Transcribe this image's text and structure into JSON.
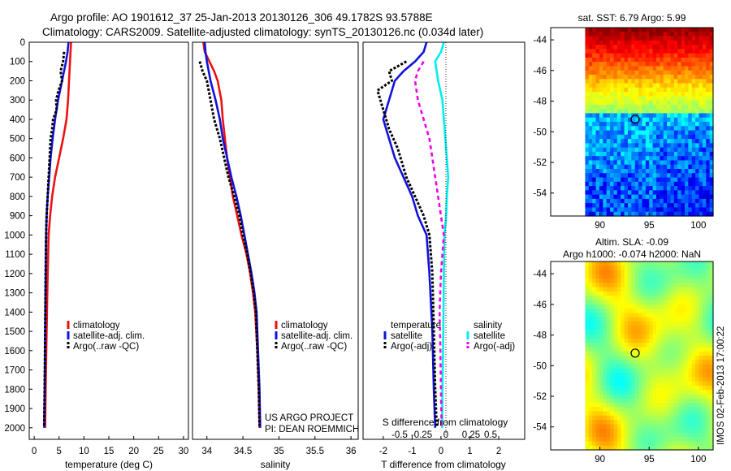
{
  "header": {
    "line1": "Argo profile: AO 1901612_37 25-Jan-2013 20130126_306 49.1782S 93.5788E",
    "line2": "Climatology: CARS2009. Satellite-adjusted climatology: synTS_20130126.nc (0.034d later)"
  },
  "colors": {
    "climatology": "#ee1111",
    "satellite": "#1111dd",
    "argo": "#000000",
    "satellite_diff": "#00eeee",
    "argo_diff": "#ee00ee"
  },
  "depth_axis": {
    "ticks": [
      0,
      100,
      200,
      300,
      400,
      500,
      600,
      700,
      800,
      900,
      1000,
      1100,
      1200,
      1300,
      1400,
      1500,
      1600,
      1700,
      1800,
      1900,
      2000
    ],
    "range": [
      0,
      2060
    ]
  },
  "chart_data": [
    {
      "type": "line",
      "id": "temperature",
      "xlabel": "temperature (deg C)",
      "xlim": [
        -1,
        31
      ],
      "xticks": [
        0,
        5,
        10,
        15,
        20,
        25,
        30
      ],
      "legend": [
        "climatology",
        "satellite-adj. clim.",
        "Argo(..raw -QC)"
      ],
      "series": [
        {
          "name": "climatology",
          "color": "#ee1111",
          "points": [
            [
              7.4,
              0
            ],
            [
              7.3,
              50
            ],
            [
              7.2,
              100
            ],
            [
              7.0,
              200
            ],
            [
              6.8,
              300
            ],
            [
              6.5,
              400
            ],
            [
              5.8,
              500
            ],
            [
              5.0,
              600
            ],
            [
              4.2,
              700
            ],
            [
              3.6,
              800
            ],
            [
              3.2,
              900
            ],
            [
              2.9,
              1000
            ],
            [
              2.7,
              1200
            ],
            [
              2.5,
              1500
            ],
            [
              2.3,
              1800
            ],
            [
              2.2,
              2000
            ]
          ]
        },
        {
          "name": "satellite-adj. clim.",
          "color": "#1111dd",
          "points": [
            [
              6.9,
              0
            ],
            [
              6.7,
              50
            ],
            [
              6.4,
              100
            ],
            [
              5.6,
              200
            ],
            [
              4.8,
              300
            ],
            [
              4.2,
              400
            ],
            [
              3.7,
              500
            ],
            [
              3.3,
              600
            ],
            [
              3.0,
              700
            ],
            [
              2.7,
              800
            ],
            [
              2.5,
              900
            ],
            [
              2.4,
              1000
            ],
            [
              2.3,
              1200
            ],
            [
              2.2,
              1500
            ],
            [
              2.1,
              1800
            ],
            [
              2.0,
              2000
            ]
          ]
        },
        {
          "name": "Argo(..raw -QC)",
          "color": "#000000",
          "points": [
            [
              6.0,
              50
            ],
            [
              5.8,
              100
            ],
            [
              5.3,
              150
            ],
            [
              5.6,
              200
            ],
            [
              4.9,
              250
            ],
            [
              4.4,
              300
            ],
            [
              4.5,
              350
            ],
            [
              3.8,
              400
            ],
            [
              3.6,
              450
            ],
            [
              3.3,
              500
            ],
            [
              3.1,
              600
            ],
            [
              2.9,
              700
            ],
            [
              2.7,
              800
            ],
            [
              2.5,
              900
            ],
            [
              2.4,
              1000
            ],
            [
              2.3,
              1200
            ],
            [
              2.2,
              1500
            ],
            [
              2.1,
              1800
            ],
            [
              2.0,
              1990
            ]
          ]
        }
      ]
    },
    {
      "type": "line",
      "id": "salinity",
      "xlabel": "salinity",
      "xlim": [
        33.8,
        36.1
      ],
      "xticks": [
        34,
        34.5,
        35,
        35.5,
        36
      ],
      "legend": [
        "climatology",
        "satellite-adj. clim.",
        "Argo(..raw -QC)"
      ],
      "series": [
        {
          "name": "climatology",
          "color": "#ee1111",
          "points": [
            [
              33.95,
              0
            ],
            [
              33.97,
              50
            ],
            [
              34.1,
              150
            ],
            [
              34.15,
              200
            ],
            [
              34.2,
              300
            ],
            [
              34.22,
              400
            ],
            [
              34.25,
              500
            ],
            [
              34.28,
              600
            ],
            [
              34.32,
              700
            ],
            [
              34.36,
              800
            ],
            [
              34.42,
              900
            ],
            [
              34.48,
              1000
            ],
            [
              34.55,
              1100
            ],
            [
              34.6,
              1200
            ],
            [
              34.64,
              1300
            ],
            [
              34.67,
              1400
            ],
            [
              34.7,
              1600
            ],
            [
              34.72,
              1800
            ],
            [
              34.73,
              2000
            ]
          ]
        },
        {
          "name": "satellite-adj. clim.",
          "color": "#1111dd",
          "points": [
            [
              33.97,
              0
            ],
            [
              33.98,
              50
            ],
            [
              34.0,
              100
            ],
            [
              34.05,
              200
            ],
            [
              34.12,
              300
            ],
            [
              34.18,
              400
            ],
            [
              34.22,
              500
            ],
            [
              34.28,
              600
            ],
            [
              34.34,
              700
            ],
            [
              34.41,
              800
            ],
            [
              34.47,
              900
            ],
            [
              34.52,
              1000
            ],
            [
              34.57,
              1100
            ],
            [
              34.62,
              1200
            ],
            [
              34.66,
              1300
            ],
            [
              34.69,
              1400
            ],
            [
              34.71,
              1600
            ],
            [
              34.73,
              1800
            ],
            [
              34.74,
              2000
            ]
          ]
        },
        {
          "name": "Argo(..raw -QC)",
          "color": "#000000",
          "points": [
            [
              33.9,
              100
            ],
            [
              33.94,
              150
            ],
            [
              34.0,
              200
            ],
            [
              34.05,
              300
            ],
            [
              34.1,
              400
            ],
            [
              34.18,
              500
            ],
            [
              34.24,
              600
            ],
            [
              34.3,
              700
            ],
            [
              34.38,
              800
            ],
            [
              34.45,
              900
            ],
            [
              34.5,
              1000
            ],
            [
              34.56,
              1100
            ],
            [
              34.61,
              1200
            ],
            [
              34.65,
              1300
            ],
            [
              34.68,
              1400
            ],
            [
              34.7,
              1600
            ],
            [
              34.72,
              1800
            ],
            [
              34.73,
              1990
            ]
          ]
        }
      ],
      "annotation": [
        "US ARGO PROJECT",
        "PI: DEAN ROEMMICH"
      ]
    },
    {
      "type": "line",
      "id": "differences",
      "xlabel": "T difference from climatology",
      "top_label": "S difference from climatology",
      "xlim": [
        -2.7,
        2.9
      ],
      "xticks": [
        -2,
        -1,
        0,
        1,
        2
      ],
      "s_ticks": [
        "-0.5",
        "-0.25",
        "0",
        "0.25",
        "0.5"
      ],
      "legend_titles": [
        "temperature",
        "salinity"
      ],
      "legend": [
        "satellite",
        "Argo(-adj)",
        "satellite",
        "Argo(-adj)"
      ],
      "series": [
        {
          "name": "T satellite",
          "color": "#1111dd",
          "points": [
            [
              -0.5,
              0
            ],
            [
              -0.6,
              50
            ],
            [
              -0.9,
              100
            ],
            [
              -1.3,
              150
            ],
            [
              -1.6,
              200
            ],
            [
              -1.8,
              300
            ],
            [
              -2.0,
              400
            ],
            [
              -1.8,
              500
            ],
            [
              -1.6,
              600
            ],
            [
              -1.3,
              700
            ],
            [
              -1.0,
              800
            ],
            [
              -0.8,
              900
            ],
            [
              -0.5,
              1000
            ],
            [
              -0.4,
              1200
            ],
            [
              -0.3,
              1500
            ],
            [
              -0.25,
              1800
            ],
            [
              -0.2,
              2000
            ]
          ]
        },
        {
          "name": "T Argo(-adj)",
          "color": "#000000",
          "points": [
            [
              -1.2,
              100
            ],
            [
              -1.8,
              150
            ],
            [
              -1.7,
              200
            ],
            [
              -2.2,
              250
            ],
            [
              -2.1,
              300
            ],
            [
              -2.0,
              350
            ],
            [
              -1.8,
              450
            ],
            [
              -1.5,
              550
            ],
            [
              -1.2,
              700
            ],
            [
              -0.9,
              800
            ],
            [
              -0.6,
              900
            ],
            [
              -0.4,
              1000
            ],
            [
              -0.3,
              1200
            ],
            [
              -0.25,
              1500
            ],
            [
              -0.2,
              1800
            ],
            [
              -0.15,
              1990
            ]
          ]
        },
        {
          "name": "S satellite",
          "color": "#00eeee",
          "points": [
            [
              0.1,
              0
            ],
            [
              0.0,
              50
            ],
            [
              -0.2,
              100
            ],
            [
              -0.1,
              200
            ],
            [
              0.05,
              300
            ],
            [
              0.1,
              400
            ],
            [
              0.15,
              500
            ],
            [
              0.2,
              600
            ],
            [
              0.25,
              700
            ],
            [
              0.2,
              800
            ],
            [
              0.18,
              900
            ],
            [
              0.12,
              1000
            ],
            [
              0.1,
              1200
            ],
            [
              0.08,
              1500
            ],
            [
              0.05,
              1800
            ],
            [
              0.04,
              2000
            ]
          ]
        },
        {
          "name": "S Argo(-adj)",
          "color": "#ee00ee",
          "points": [
            [
              -0.6,
              100
            ],
            [
              -0.8,
              150
            ],
            [
              -0.9,
              200
            ],
            [
              -0.8,
              300
            ],
            [
              -0.6,
              400
            ],
            [
              -0.4,
              500
            ],
            [
              -0.3,
              600
            ],
            [
              -0.2,
              700
            ],
            [
              -0.1,
              800
            ],
            [
              0.0,
              900
            ],
            [
              0.1,
              1000
            ],
            [
              0.05,
              1100
            ],
            [
              0.0,
              1200
            ],
            [
              -0.05,
              1400
            ],
            [
              -0.02,
              1600
            ],
            [
              0.0,
              1800
            ],
            [
              0.02,
              1990
            ]
          ]
        }
      ]
    },
    {
      "type": "heatmap",
      "id": "sst_map",
      "title": "sat. SST: 6.79 Argo: 5.99",
      "xlim": [
        85,
        101.5
      ],
      "ylim": [
        -55.5,
        -43.2
      ],
      "xticks": [
        90,
        95,
        100
      ],
      "yticks": [
        -44,
        -46,
        -48,
        -50,
        -52,
        -54
      ],
      "valid_x_from": 88.5,
      "marker": {
        "lon": 93.58,
        "lat": -49.18
      }
    },
    {
      "type": "heatmap",
      "id": "sla_map",
      "title_line1": "Altim. SLA: -0.09",
      "title_line2": "Argo h1000: -0.074 h2000: NaN",
      "xlim": [
        85,
        101.5
      ],
      "ylim": [
        -55.5,
        -43.2
      ],
      "xticks": [
        90,
        95,
        100
      ],
      "yticks": [
        -44,
        -46,
        -48,
        -50,
        -52,
        -54
      ],
      "valid_x_from": 88.5,
      "marker": {
        "lon": 93.58,
        "lat": -49.18
      }
    }
  ],
  "watermark": "IMOS 02-Feb-2013 17:00:22"
}
